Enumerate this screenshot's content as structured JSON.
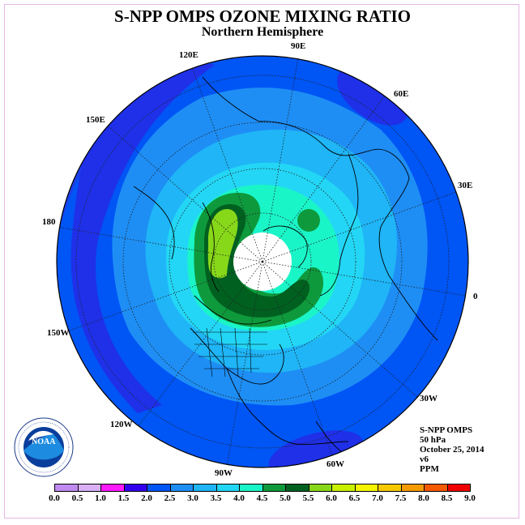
{
  "title": "S-NPP OMPS OZONE MIXING RATIO",
  "subtitle": "Northern Hemisphere",
  "longitude_labels": [
    "90E",
    "60E",
    "30E",
    "0",
    "30W",
    "60W",
    "90W",
    "120W",
    "150W",
    "180",
    "150E",
    "120E"
  ],
  "info": {
    "instrument": "S-NPP OMPS",
    "level": "50 hPa",
    "date": "October 25, 2014",
    "version": "v6",
    "units": "PPM"
  },
  "logo_text": "NOAA",
  "colorbar": {
    "ticks": [
      "0.0",
      "0.5",
      "1.0",
      "1.5",
      "2.0",
      "2.5",
      "3.0",
      "3.5",
      "4.0",
      "4.5",
      "5.0",
      "5.5",
      "6.0",
      "6.5",
      "7.0",
      "7.5",
      "8.0",
      "8.5",
      "9.0"
    ],
    "colors": [
      "#c08af0",
      "#d9b0f6",
      "#ff1aff",
      "#3300ee",
      "#0055f5",
      "#1e8ef5",
      "#1fb5f7",
      "#23d6f5",
      "#1af5c8",
      "#0e9a3c",
      "#006020",
      "#88d81a",
      "#c8f000",
      "#f5f500",
      "#f5c800",
      "#f59a00",
      "#f55a00",
      "#f00000",
      "#9a5a3c"
    ]
  },
  "ozone_contours": [
    {
      "level": "2.0",
      "color": "#0055f5"
    },
    {
      "level": "2.5",
      "color": "#1e8ef5"
    },
    {
      "level": "3.0",
      "color": "#1fb5f7"
    },
    {
      "level": "3.5",
      "color": "#23d6f5"
    },
    {
      "level": "4.0",
      "color": "#1af5c8"
    },
    {
      "level": "4.5",
      "color": "#0e9a3c"
    },
    {
      "level": "5.0",
      "color": "#006020"
    },
    {
      "level": "5.5",
      "color": "#88d81a"
    }
  ]
}
